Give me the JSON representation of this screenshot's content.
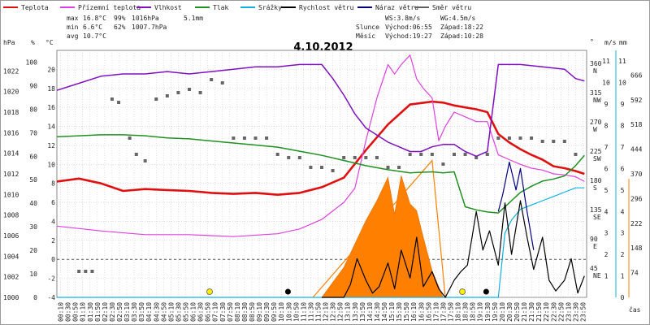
{
  "chart_data": {
    "type": "line",
    "title": "4.10.2012",
    "xlabel": "čas",
    "legend": [
      {
        "name": "Teplota",
        "color": "#e01010"
      },
      {
        "name": "Přízemní teplota",
        "color": "#e040e0"
      },
      {
        "name": "Vlhkost",
        "color": "#8010c0"
      },
      {
        "name": "Tlak",
        "color": "#209020"
      },
      {
        "name": "Srážky",
        "color": "#10b0e0"
      },
      {
        "name": "Rychlost větru",
        "color": "#000000"
      },
      {
        "name": "Náraz větru",
        "color": "#000080"
      },
      {
        "name": "Směr větru",
        "color": "#606060"
      }
    ],
    "stats": {
      "max_label": "max",
      "min_label": "min",
      "avg_label": "avg",
      "max_temp": "16.8°C",
      "max_hum": "99%",
      "max_press": "1016hPa",
      "rain": "5.1mm",
      "min_temp": "6.6°C",
      "min_hum": "62%",
      "min_press": "1007.7hPa",
      "avg_temp": "10.7°C"
    },
    "info": {
      "ws": "WS:3.8m/s",
      "wg": "WG:4.5m/s",
      "sun_label": "Slunce",
      "sunrise": "Východ:06:55",
      "sunset": "Západ:18:22",
      "moon_label": "Měsíc",
      "moonrise": "Východ:19:27",
      "moonset": "Západ:10:28"
    },
    "x_ticks": [
      "00:10",
      "00:30",
      "00:50",
      "01:10",
      "01:30",
      "01:50",
      "02:10",
      "02:30",
      "02:50",
      "03:10",
      "03:30",
      "03:50",
      "04:10",
      "04:30",
      "04:50",
      "05:10",
      "05:30",
      "05:50",
      "06:10",
      "06:30",
      "06:50",
      "07:10",
      "07:30",
      "07:50",
      "08:10",
      "08:30",
      "08:50",
      "09:10",
      "09:30",
      "09:50",
      "10:10",
      "10:30",
      "10:50",
      "11:10",
      "11:30",
      "11:50",
      "12:10",
      "12:30",
      "12:50",
      "13:10",
      "13:30",
      "13:50",
      "14:10",
      "14:30",
      "14:50",
      "15:10",
      "15:30",
      "15:50",
      "16:10",
      "16:30",
      "16:50",
      "17:10",
      "17:30",
      "17:50",
      "18:10",
      "18:30",
      "18:50",
      "19:10",
      "19:30",
      "19:50",
      "20:10",
      "20:30",
      "20:50",
      "21:10",
      "21:30",
      "21:50",
      "22:10",
      "22:30",
      "22:50",
      "23:10",
      "23:30",
      "23:50"
    ],
    "axes": {
      "hpa": {
        "label": "hPa",
        "color": "#209020",
        "ticks": [
          "1022",
          "1020",
          "1018",
          "1016",
          "1014",
          "1012",
          "1010",
          "1008",
          "1006",
          "1004",
          "1002",
          "1000"
        ],
        "ylim": [
          1000,
          1024
        ]
      },
      "pct": {
        "label": "%",
        "color": "#8010c0",
        "ticks": [
          "100",
          "90",
          "80",
          "70",
          "60",
          "50",
          "40",
          "30",
          "20",
          "10",
          "0"
        ],
        "ylim": [
          0,
          105
        ]
      },
      "degc": {
        "label": "°C",
        "color": "#e01010",
        "ticks": [
          "20",
          "18",
          "16",
          "14",
          "12",
          "10",
          "8",
          "6",
          "4",
          "2",
          "0",
          "-2",
          "-4"
        ],
        "ylim": [
          -4,
          22
        ]
      },
      "dir": {
        "label": "°",
        "ticks": [
          "360",
          "315",
          "270",
          "225",
          "180",
          "135",
          "90",
          "45"
        ],
        "labels": [
          "N",
          "NW",
          "W",
          "SW",
          "S",
          "SE",
          "E",
          "NE"
        ]
      },
      "ms": {
        "label": "m/s",
        "ticks": [
          "11",
          "10",
          "9",
          "8",
          "7",
          "6",
          "5",
          "4",
          "3",
          "2",
          "1"
        ],
        "ylim": [
          0,
          11.5
        ]
      },
      "mm": {
        "label": "mm",
        "color": "#10b0e0",
        "ticks": [
          "11",
          "10",
          "9",
          "8",
          "7",
          "6",
          "5",
          "4",
          "3",
          "2",
          "1",
          "0"
        ],
        "ylim": [
          0,
          11.5
        ]
      },
      "wm2": {
        "color": "#ff8000",
        "ticks": [
          "666",
          "592",
          "518",
          "444",
          "370",
          "296",
          "222",
          "148",
          "74"
        ],
        "ylim": [
          0,
          740
        ]
      }
    },
    "series": [
      {
        "name": "Teplota",
        "unit": "°C",
        "x": [
          0,
          1,
          2,
          3,
          4,
          5,
          6,
          7,
          8,
          9,
          10,
          11,
          12,
          13,
          14,
          15,
          16,
          17,
          17.5,
          18,
          18.5,
          19,
          19.5,
          20,
          20.5,
          21,
          21.5,
          22,
          22.5,
          23,
          23.5,
          23.9
        ],
        "values": [
          8.2,
          8.5,
          8.0,
          7.2,
          7.4,
          7.3,
          7.2,
          7.0,
          6.9,
          7.0,
          6.8,
          7.0,
          7.6,
          8.6,
          11.5,
          14.2,
          16.3,
          16.6,
          16.5,
          16.2,
          16.0,
          15.8,
          15.5,
          13.2,
          12.3,
          11.6,
          11.0,
          10.5,
          9.8,
          9.6,
          9.3,
          9.0
        ]
      },
      {
        "name": "Přízemní teplota",
        "unit": "°C",
        "x": [
          0,
          2,
          4,
          6,
          8,
          10,
          11,
          12,
          13,
          13.5,
          14,
          14.5,
          15,
          15.3,
          15.6,
          16,
          16.3,
          16.6,
          17,
          17.3,
          17.6,
          18,
          18.5,
          19,
          19.5,
          20,
          20.5,
          21,
          21.5,
          22,
          22.5,
          23,
          23.5,
          23.9
        ],
        "values": [
          3.5,
          3.0,
          2.6,
          2.6,
          2.4,
          2.7,
          3.2,
          4.2,
          6.0,
          7.5,
          12.5,
          17.0,
          20.5,
          19.5,
          20.5,
          21.5,
          19.0,
          18.0,
          17.0,
          12.5,
          14.0,
          15.5,
          15.0,
          14.5,
          14.5,
          11.0,
          10.5,
          10.0,
          9.6,
          9.4,
          9.0,
          8.9,
          8.7,
          8.2
        ]
      },
      {
        "name": "Vlhkost",
        "unit": "%",
        "x": [
          0,
          1,
          2,
          3,
          4,
          5,
          6,
          7,
          8,
          9,
          10,
          11,
          12,
          12.5,
          13,
          13.5,
          14,
          14.5,
          15,
          15.5,
          16,
          16.5,
          17,
          17.5,
          18,
          18.5,
          19,
          19.5,
          20,
          21,
          22,
          23,
          23.5,
          23.9
        ],
        "values": [
          88,
          91,
          94,
          95,
          95,
          96,
          95,
          96,
          97,
          98,
          98,
          99,
          99,
          93,
          86,
          78,
          72,
          69,
          66,
          64,
          62,
          62,
          64,
          65,
          65,
          62,
          60,
          62,
          99,
          99,
          98,
          97,
          93,
          92
        ]
      },
      {
        "name": "Tlak",
        "unit": "hPa",
        "x": [
          0,
          1,
          2,
          3,
          4,
          5,
          6,
          7,
          8,
          9,
          10,
          11,
          12,
          13,
          14,
          15,
          16,
          17,
          17.5,
          18,
          18.5,
          19,
          19.5,
          20,
          20.5,
          21,
          21.5,
          22,
          22.5,
          23,
          23.5,
          23.9
        ],
        "values": [
          1015.6,
          1015.7,
          1015.8,
          1015.8,
          1015.7,
          1015.5,
          1015.4,
          1015.2,
          1015.0,
          1014.8,
          1014.6,
          1014.2,
          1013.8,
          1013.3,
          1012.8,
          1012.4,
          1012.1,
          1012.2,
          1012.1,
          1012.2,
          1008.8,
          1008.5,
          1008.3,
          1008.2,
          1009.2,
          1010.2,
          1010.8,
          1011.3,
          1011.5,
          1011.8,
          1012.8,
          1013.8
        ]
      },
      {
        "name": "Srážky",
        "unit": "mm",
        "x": [
          0,
          10,
          18,
          20,
          20.3,
          20.6,
          21,
          21.5,
          22,
          22.5,
          23,
          23.5,
          23.9
        ],
        "values": [
          0,
          0,
          0,
          0,
          3.0,
          3.6,
          4.1,
          4.3,
          4.5,
          4.7,
          4.9,
          5.1,
          5.1
        ]
      },
      {
        "name": "Rychlost větru",
        "unit": "m/s",
        "x": [
          12,
          13,
          13.3,
          13.6,
          14,
          14.3,
          14.6,
          15,
          15.3,
          15.6,
          16,
          16.3,
          16.6,
          17,
          17.3,
          17.6,
          18,
          18.3,
          18.6,
          19,
          19.3,
          19.6,
          20,
          20.3,
          20.6,
          21,
          21.3,
          21.6,
          22,
          22.3,
          22.6,
          23,
          23.3,
          23.6,
          23.9
        ],
        "values": [
          0,
          0,
          0.6,
          1.8,
          0.8,
          0.2,
          0.5,
          1.6,
          0.4,
          2.2,
          0.9,
          2.8,
          0.5,
          1.2,
          0.4,
          0,
          0.8,
          1.2,
          1.5,
          4.0,
          2.2,
          3.1,
          1.5,
          4.4,
          2.0,
          4.5,
          2.8,
          1.3,
          2.8,
          0.8,
          0.3,
          0.8,
          1.8,
          0.2,
          1.0
        ]
      },
      {
        "name": "Náraz větru",
        "unit": "m/s",
        "x": [
          20,
          20.2,
          20.5,
          20.8,
          21,
          21.3,
          21.6
        ],
        "values": [
          4.0,
          4.8,
          6.3,
          5.0,
          6.0,
          4.0,
          2.2
        ]
      }
    ],
    "solar": {
      "x": [
        12,
        13,
        14,
        14.5,
        15,
        15.3,
        15.6,
        16,
        16.3,
        16.6,
        17,
        17.5
      ],
      "values": [
        0,
        90,
        230,
        290,
        360,
        250,
        365,
        280,
        260,
        180,
        80,
        0
      ]
    },
    "solar_line": {
      "x": [
        11.6,
        17,
        17.6
      ],
      "values": [
        0,
        410,
        0
      ]
    },
    "wind_dir": {
      "x": [
        1,
        1.3,
        1.6,
        2.5,
        2.8,
        3.3,
        3.6,
        4,
        4.5,
        5,
        5.5,
        6,
        6.5,
        7,
        7.5,
        8,
        8.5,
        9,
        9.5,
        10,
        10.5,
        11,
        11.5,
        12,
        12.5,
        13,
        13.5,
        14,
        14.5,
        15,
        15.5,
        16,
        16.5,
        17,
        17.5,
        18,
        18.5,
        19,
        19.5,
        20,
        20.5,
        21,
        21.5,
        22,
        22.5,
        23,
        23.5
      ],
      "values": [
        40,
        40,
        40,
        305,
        300,
        245,
        220,
        210,
        305,
        310,
        315,
        320,
        315,
        335,
        330,
        245,
        245,
        245,
        245,
        220,
        215,
        215,
        200,
        200,
        195,
        215,
        215,
        215,
        215,
        200,
        200,
        220,
        220,
        220,
        205,
        220,
        220,
        215,
        220,
        245,
        245,
        245,
        245,
        240,
        240,
        240,
        220
      ]
    }
  }
}
